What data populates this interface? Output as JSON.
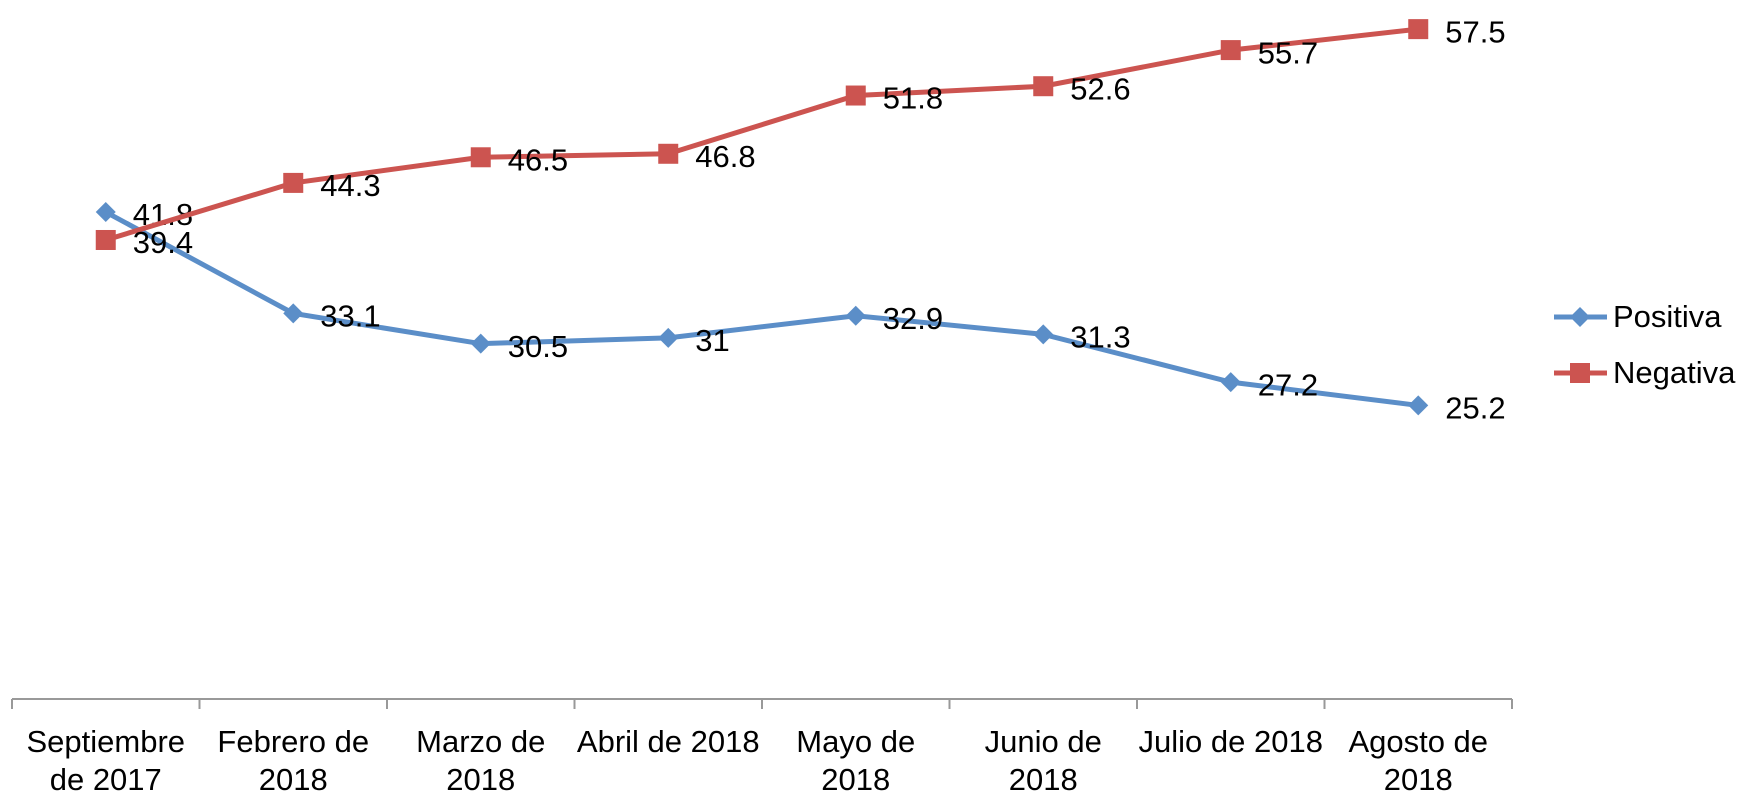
{
  "chart_data": {
    "type": "line",
    "categories": [
      "Septiembre de 2017",
      "Febrero de 2018",
      "Marzo de 2018",
      "Abril de 2018",
      "Mayo de 2018",
      "Junio de 2018",
      "Julio de 2018",
      "Agosto de 2018"
    ],
    "series": [
      {
        "name": "Positiva",
        "color": "#5b8ec8",
        "marker": "diamond",
        "values": [
          41.8,
          33.1,
          30.5,
          31,
          32.9,
          31.3,
          27.2,
          25.2
        ]
      },
      {
        "name": "Negativa",
        "color": "#cc5450",
        "marker": "square",
        "values": [
          39.4,
          44.3,
          46.5,
          46.8,
          51.8,
          52.6,
          55.7,
          57.5
        ]
      }
    ],
    "ylim": [
      0,
      60
    ],
    "legend": "right"
  }
}
